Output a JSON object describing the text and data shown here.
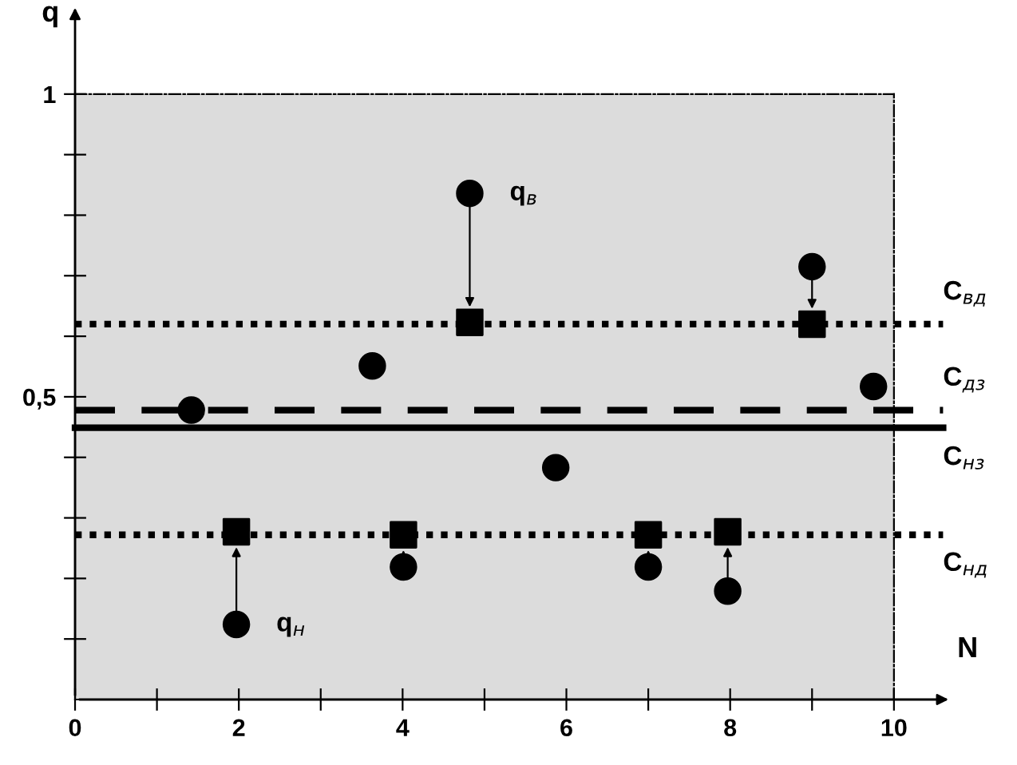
{
  "chart_data": {
    "type": "scatter",
    "xlabel": "N",
    "ylabel": "q",
    "x": [
      1.42,
      1.97,
      3.63,
      4.01,
      4.82,
      5.87,
      7.0,
      7.97,
      9.0,
      9.75
    ],
    "series": [
      {
        "marker": "circle",
        "color": "#000000",
        "values": [
          0.478,
          0.124,
          0.551,
          0.219,
          0.836,
          0.383,
          0.219,
          0.179,
          0.715,
          0.517
        ]
      },
      {
        "marker": "square",
        "color": "#000000",
        "values": [
          null,
          0.277,
          null,
          0.272,
          0.623,
          null,
          0.272,
          0.277,
          0.62,
          null
        ]
      }
    ],
    "xlim": [
      0,
      10
    ],
    "ylim": [
      0,
      1
    ],
    "xticks": [
      0,
      {
        "value": 1,
        "label": null
      },
      2,
      {
        "value": 3,
        "label": null
      },
      4,
      {
        "value": 5,
        "label": null
      },
      6,
      {
        "value": 7,
        "label": null
      },
      8,
      {
        "value": 9,
        "label": null
      },
      10
    ],
    "yticks": [
      {
        "value": 0.1,
        "label": null
      },
      {
        "value": 0.2,
        "label": null
      },
      {
        "value": 0.3,
        "label": null
      },
      {
        "value": 0.4,
        "label": null
      },
      {
        "value": 0.5,
        "label": "0,5"
      },
      {
        "value": 0.6,
        "label": null
      },
      {
        "value": 0.7,
        "label": null
      },
      {
        "value": 0.8,
        "label": null
      },
      {
        "value": 0.9,
        "label": null
      },
      1
    ],
    "ref_lines": [
      {
        "axis": "y",
        "value": 0.62,
        "label": "С$_{вд}$",
        "line_style": "dotted",
        "color": "#000000"
      },
      {
        "axis": "y",
        "value": 0.478,
        "label": "С$_{дз}$",
        "line_style": "dashed",
        "color": "#000000"
      },
      {
        "axis": "y",
        "value": 0.449,
        "label": "С$_{нз}$",
        "line_style": "solid",
        "color": "#000000"
      },
      {
        "axis": "y",
        "value": 0.272,
        "label": "С$_{нд}$",
        "line_style": "dotted",
        "color": "#000000"
      }
    ],
    "bands": [
      {
        "axis": "x",
        "from": 0,
        "to": 10,
        "color": "#dcdcdc"
      }
    ],
    "annotations": [
      {
        "text": "q$_{в}$",
        "x": 4.82,
        "y": 0.836
      },
      {
        "text": "q$_{н}$",
        "x": 1.97,
        "y": 0.124
      }
    ],
    "grid": false
  }
}
